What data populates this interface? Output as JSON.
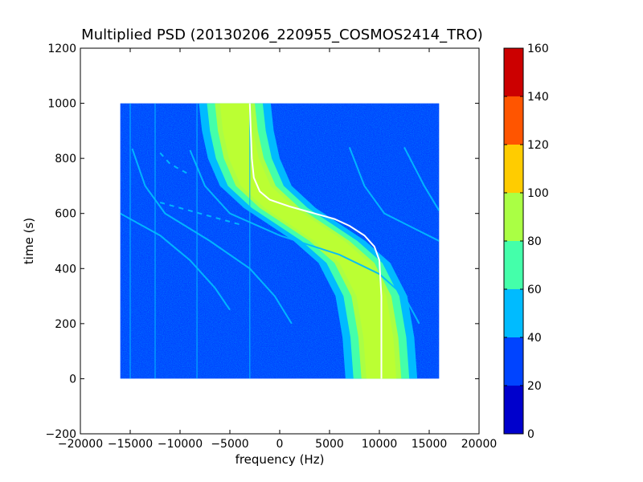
{
  "chart_data": {
    "type": "heatmap",
    "title": "Multiplied PSD (20130206_220955_COSMOS2414_TRO)",
    "xlabel": "frequency (Hz)",
    "ylabel": "time (s)",
    "xlim": [
      -20000,
      20000
    ],
    "ylim": [
      -200,
      1200
    ],
    "x_ticks": [
      -20000,
      -15000,
      -10000,
      -5000,
      0,
      5000,
      10000,
      15000,
      20000
    ],
    "y_ticks": [
      -200,
      0,
      200,
      400,
      600,
      800,
      1000,
      1200
    ],
    "x_tick_labels": [
      "−20000",
      "−15000",
      "−10000",
      "−5000",
      "0",
      "5000",
      "10000",
      "15000",
      "20000"
    ],
    "y_tick_labels": [
      "−200",
      "0",
      "200",
      "400",
      "600",
      "800",
      "1000",
      "1200"
    ],
    "grid": false,
    "data_extent": {
      "x": [
        -16000,
        16000
      ],
      "y": [
        0,
        1000
      ]
    },
    "colorbar": {
      "min": 0,
      "max": 160,
      "ticks": [
        0,
        20,
        40,
        60,
        80,
        100,
        120,
        140,
        160
      ],
      "tick_labels": [
        "0",
        "20",
        "40",
        "60",
        "80",
        "100",
        "120",
        "140",
        "160"
      ],
      "levels": [
        {
          "range": [
            0,
            20
          ],
          "color": "#0000cc"
        },
        {
          "range": [
            20,
            40
          ],
          "color": "#0044ff"
        },
        {
          "range": [
            40,
            60
          ],
          "color": "#00bbff"
        },
        {
          "range": [
            60,
            80
          ],
          "color": "#44ffaa"
        },
        {
          "range": [
            80,
            100
          ],
          "color": "#aaff44"
        },
        {
          "range": [
            100,
            120
          ],
          "color": "#ffcc00"
        },
        {
          "range": [
            120,
            140
          ],
          "color": "#ff5500"
        },
        {
          "range": [
            140,
            160
          ],
          "color": "#cc0000"
        }
      ]
    },
    "main_band": {
      "description_only": false,
      "center_curve": [
        {
          "t": 1000,
          "f": -4500
        },
        {
          "t": 900,
          "f": -4200
        },
        {
          "t": 800,
          "f": -3600
        },
        {
          "t": 700,
          "f": -2400
        },
        {
          "t": 620,
          "f": 0
        },
        {
          "t": 560,
          "f": 2500
        },
        {
          "t": 500,
          "f": 5000
        },
        {
          "t": 420,
          "f": 7500
        },
        {
          "t": 300,
          "f": 9200
        },
        {
          "t": 150,
          "f": 9900
        },
        {
          "t": 0,
          "f": 10200
        }
      ],
      "half_widths": {
        "yellow_green": 1500,
        "light_green": 2000,
        "cyan": 2800,
        "light_blue": 3600
      }
    },
    "doppler_track": [
      {
        "t": 1000,
        "f": -3000
      },
      {
        "t": 900,
        "f": -2900
      },
      {
        "t": 800,
        "f": -2800
      },
      {
        "t": 730,
        "f": -2600
      },
      {
        "t": 680,
        "f": -2000
      },
      {
        "t": 650,
        "f": -1000
      },
      {
        "t": 625,
        "f": 1000
      },
      {
        "t": 600,
        "f": 3500
      },
      {
        "t": 580,
        "f": 5500
      },
      {
        "t": 555,
        "f": 7000
      },
      {
        "t": 520,
        "f": 8500
      },
      {
        "t": 480,
        "f": 9500
      },
      {
        "t": 430,
        "f": 10000
      },
      {
        "t": 300,
        "f": 10200
      },
      {
        "t": 150,
        "f": 10200
      },
      {
        "t": 0,
        "f": 10200
      }
    ],
    "secondary_curves": [
      [
        {
          "t": 835,
          "f": -14800
        },
        {
          "t": 700,
          "f": -13500
        },
        {
          "t": 600,
          "f": -11500
        },
        {
          "t": 500,
          "f": -7000
        },
        {
          "t": 400,
          "f": -3000
        },
        {
          "t": 300,
          "f": -500
        },
        {
          "t": 200,
          "f": 1200
        }
      ],
      [
        {
          "t": 830,
          "f": -9000
        },
        {
          "t": 700,
          "f": -7500
        },
        {
          "t": 600,
          "f": -5000
        },
        {
          "t": 520,
          "f": 0
        },
        {
          "t": 450,
          "f": 6000
        },
        {
          "t": 380,
          "f": 10000
        },
        {
          "t": 300,
          "f": 12500
        },
        {
          "t": 200,
          "f": 14000
        }
      ],
      [
        {
          "t": 600,
          "f": -16000
        },
        {
          "t": 520,
          "f": -12000
        },
        {
          "t": 430,
          "f": -9000
        },
        {
          "t": 330,
          "f": -6500
        },
        {
          "t": 250,
          "f": -5000
        }
      ],
      [
        {
          "t": 840,
          "f": 7000
        },
        {
          "t": 700,
          "f": 8500
        },
        {
          "t": 600,
          "f": 10500
        },
        {
          "t": 500,
          "f": 16000
        }
      ],
      [
        {
          "t": 840,
          "f": 12500
        },
        {
          "t": 700,
          "f": 14500
        },
        {
          "t": 610,
          "f": 16000
        }
      ],
      [
        {
          "t": 820,
          "f": -12000
        },
        {
          "t": 780,
          "f": -11000
        },
        {
          "t": 740,
          "f": -9000
        }
      ],
      [
        {
          "t": 640,
          "f": -12000
        },
        {
          "t": 600,
          "f": -8000
        },
        {
          "t": 560,
          "f": -4000
        }
      ]
    ],
    "vertical_lines": [
      -15000,
      -12500,
      -8300,
      -3000
    ]
  }
}
